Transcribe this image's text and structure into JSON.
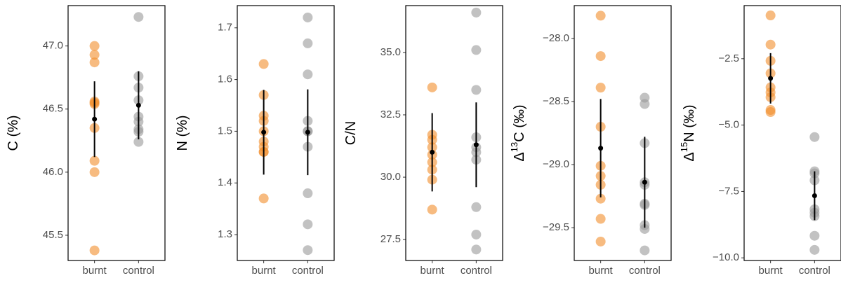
{
  "chart_data": [
    {
      "type": "strip",
      "ylabel": [
        {
          "text": "C (%)"
        }
      ],
      "ylim": [
        45.3,
        47.32
      ],
      "yticks": [
        {
          "value": 45.5,
          "label": "45.5"
        },
        {
          "value": 46,
          "label": "46.0"
        },
        {
          "value": 46.5,
          "label": "46.5"
        },
        {
          "value": 47,
          "label": "47.0"
        }
      ],
      "groups": [
        {
          "label": "burnt",
          "color": "#f28e2b",
          "values": [
            47.0,
            46.93,
            46.87,
            46.56,
            46.55,
            46.54,
            46.35,
            46.09,
            46.0,
            45.38
          ],
          "mean": 46.42,
          "error": 0.3
        },
        {
          "label": "control",
          "color": "#999999",
          "values": [
            47.23,
            46.76,
            46.67,
            46.57,
            46.44,
            46.4,
            46.34,
            46.32,
            46.24
          ],
          "mean": 46.53,
          "error": 0.27
        }
      ]
    },
    {
      "type": "strip",
      "ylabel": [
        {
          "text": "N (%)"
        }
      ],
      "ylim": [
        1.25,
        1.743
      ],
      "yticks": [
        1.3,
        1.4,
        1.5,
        1.6,
        1.7
      ],
      "groups": [
        {
          "label": "burnt",
          "color": "#f28e2b",
          "values": [
            1.63,
            1.57,
            1.53,
            1.52,
            1.5,
            1.48,
            1.47,
            1.46,
            1.46,
            1.37
          ],
          "mean": 1.498,
          "error": 0.082
        },
        {
          "label": "control",
          "color": "#999999",
          "values": [
            1.72,
            1.67,
            1.61,
            1.52,
            1.5,
            1.5,
            1.47,
            1.38,
            1.32,
            1.27
          ],
          "mean": 1.498,
          "error": 0.083
        }
      ]
    },
    {
      "type": "strip",
      "ylabel": [
        {
          "text": "C/N"
        }
      ],
      "ylim": [
        26.66,
        36.88
      ],
      "yticks": [
        {
          "value": 27.5,
          "label": "27.5"
        },
        {
          "value": 30,
          "label": "30.0"
        },
        {
          "value": 32.5,
          "label": "32.5"
        },
        {
          "value": 35,
          "label": "35.0"
        }
      ],
      "groups": [
        {
          "label": "burnt",
          "color": "#f28e2b",
          "values": [
            33.6,
            31.7,
            31.5,
            31.2,
            30.9,
            30.6,
            30.3,
            29.9,
            28.7
          ],
          "mean": 31.0,
          "error": 1.57
        },
        {
          "label": "control",
          "color": "#999999",
          "values": [
            36.6,
            35.1,
            33.5,
            31.6,
            31.2,
            31.0,
            30.7,
            28.8,
            27.7,
            27.1
          ],
          "mean": 31.3,
          "error": 1.7
        }
      ]
    },
    {
      "type": "strip",
      "ylabel": [
        {
          "text": "Δ"
        },
        {
          "text": "13",
          "superscript": true
        },
        {
          "text": "C (‰)"
        }
      ],
      "ylim": [
        -29.76,
        -27.74
      ],
      "yticks": [
        {
          "value": -29.5,
          "label": "−29.5"
        },
        {
          "value": -29,
          "label": "−29.0"
        },
        {
          "value": -28.5,
          "label": "−28.5"
        },
        {
          "value": -28,
          "label": "−28.0"
        }
      ],
      "groups": [
        {
          "label": "burnt",
          "color": "#f28e2b",
          "values": [
            -27.82,
            -28.14,
            -28.39,
            -28.7,
            -29.01,
            -29.09,
            -29.16,
            -29.27,
            -29.43,
            -29.61
          ],
          "mean": -28.87,
          "error": 0.39
        },
        {
          "label": "control",
          "color": "#999999",
          "values": [
            -28.47,
            -28.52,
            -28.83,
            -29.14,
            -29.16,
            -29.31,
            -29.32,
            -29.48,
            -29.51,
            -29.68
          ],
          "mean": -29.14,
          "error": 0.36
        }
      ]
    },
    {
      "type": "strip",
      "ylabel": [
        {
          "text": "Δ"
        },
        {
          "text": "15",
          "superscript": true
        },
        {
          "text": "N (‰)"
        }
      ],
      "ylim": [
        -10.1,
        -0.5
      ],
      "yticks": [
        {
          "value": -10,
          "label": "−10.0"
        },
        {
          "value": -7.5,
          "label": "−7.5"
        },
        {
          "value": -5,
          "label": "−5.0"
        },
        {
          "value": -2.5,
          "label": "−2.5"
        }
      ],
      "groups": [
        {
          "label": "burnt",
          "color": "#f28e2b",
          "values": [
            -0.87,
            -1.97,
            -2.58,
            -3.05,
            -3.58,
            -3.77,
            -3.95,
            -4.43,
            -4.51
          ],
          "mean": -3.24,
          "error": 0.95
        },
        {
          "label": "control",
          "color": "#999999",
          "values": [
            -5.45,
            -6.74,
            -6.82,
            -7.08,
            -8.17,
            -8.3,
            -8.43,
            -9.17,
            -9.7
          ],
          "mean": -7.66,
          "error": 0.92
        }
      ]
    }
  ]
}
